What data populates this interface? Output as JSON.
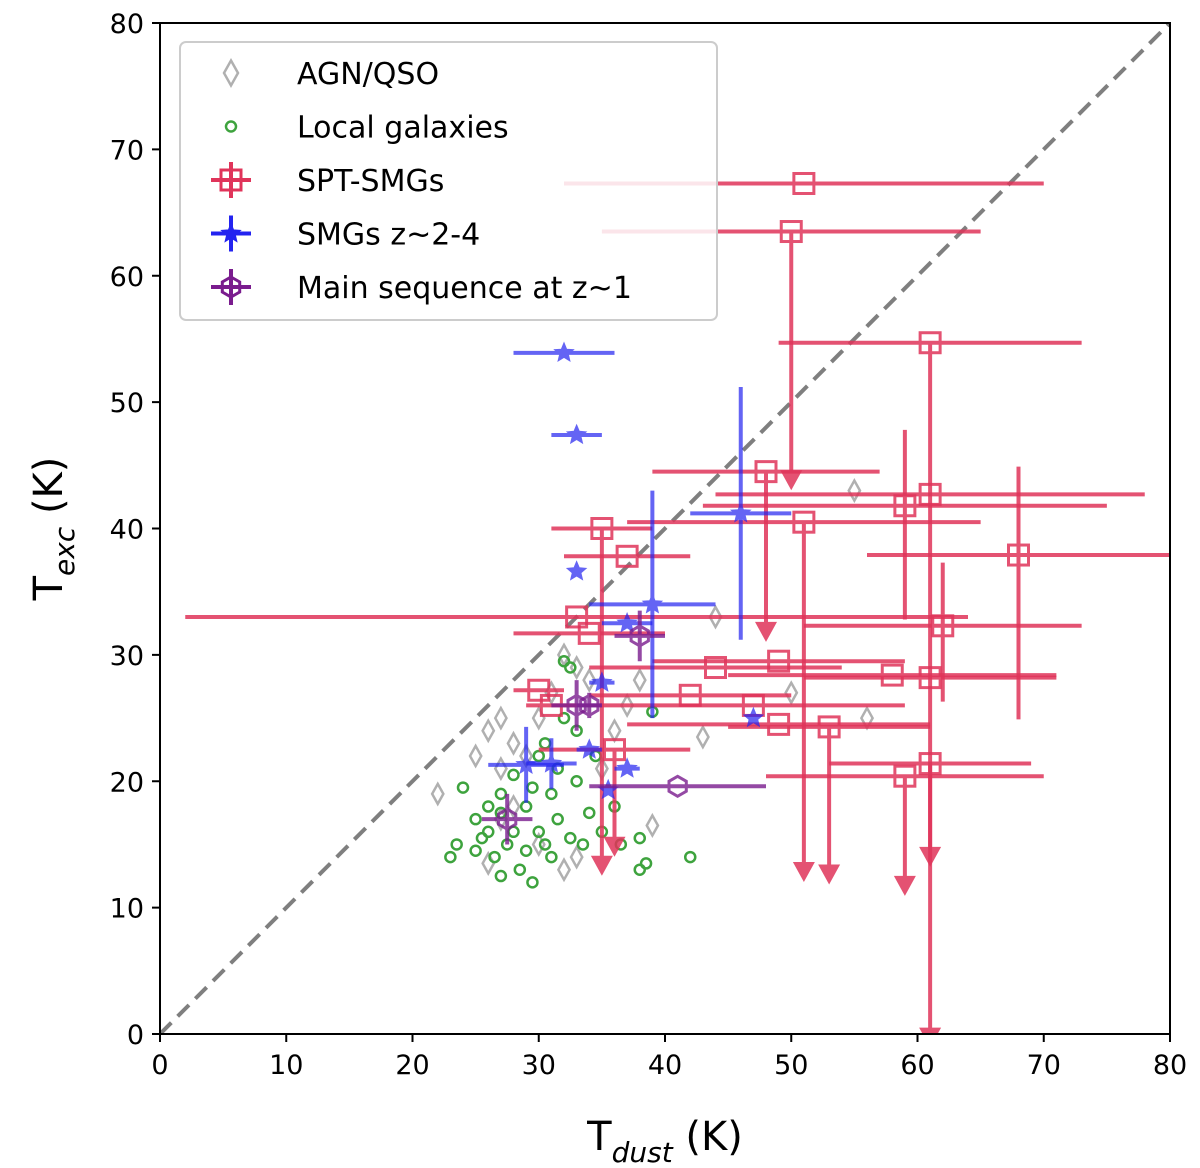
{
  "chart_data": {
    "type": "scatter",
    "title": "",
    "xlabel": {
      "main": "T",
      "sub": "dust",
      "unit": " (K)"
    },
    "ylabel": {
      "main": "T",
      "sub": "exc",
      "unit": " (K)"
    },
    "xlim": [
      0,
      80
    ],
    "ylim": [
      0,
      80
    ],
    "xticks": [
      "0",
      "10",
      "20",
      "30",
      "40",
      "50",
      "60",
      "70",
      "80"
    ],
    "yticks": [
      "0",
      "10",
      "20",
      "30",
      "40",
      "50",
      "60",
      "70",
      "80"
    ],
    "reference_line": {
      "label": "1:1",
      "style": "dashed",
      "color": "#7f7f7f"
    },
    "legend_position": "upper-left",
    "series": [
      {
        "name": "AGN/QSO",
        "label": "AGN/QSO",
        "marker": "diamond",
        "color": "#b0b0b0",
        "points": [
          [
            22,
            19
          ],
          [
            25,
            22
          ],
          [
            26,
            24
          ],
          [
            27,
            25
          ],
          [
            27,
            21
          ],
          [
            28,
            23
          ],
          [
            29,
            22
          ],
          [
            30,
            25
          ],
          [
            31,
            27
          ],
          [
            32,
            30
          ],
          [
            33,
            29
          ],
          [
            34,
            28
          ],
          [
            35,
            21
          ],
          [
            36,
            24
          ],
          [
            37,
            26
          ],
          [
            38,
            28
          ],
          [
            39,
            16.5
          ],
          [
            44,
            33
          ],
          [
            43,
            23.5
          ],
          [
            50,
            27
          ],
          [
            55,
            43
          ],
          [
            56,
            25
          ],
          [
            26,
            13.5
          ],
          [
            32,
            13
          ],
          [
            33,
            14
          ],
          [
            30,
            15
          ],
          [
            28,
            18
          ],
          [
            27,
            17
          ]
        ]
      },
      {
        "name": "Local galaxies",
        "label": "Local galaxies",
        "marker": "circle",
        "color": "#3ea33e",
        "points": [
          [
            23,
            14
          ],
          [
            23.5,
            15
          ],
          [
            24,
            19.5
          ],
          [
            25,
            17
          ],
          [
            25.5,
            15.5
          ],
          [
            26,
            18
          ],
          [
            26,
            16
          ],
          [
            26.5,
            14
          ],
          [
            27,
            19
          ],
          [
            27,
            17.5
          ],
          [
            27.5,
            15
          ],
          [
            28,
            16
          ],
          [
            28.5,
            13
          ],
          [
            29,
            18
          ],
          [
            29,
            14.5
          ],
          [
            29.5,
            12
          ],
          [
            30,
            16
          ],
          [
            30,
            22
          ],
          [
            30.5,
            23
          ],
          [
            31,
            14
          ],
          [
            31.5,
            17
          ],
          [
            31.5,
            21
          ],
          [
            32,
            25
          ],
          [
            32.5,
            15.5
          ],
          [
            32,
            29.5
          ],
          [
            32.5,
            29
          ],
          [
            33,
            24
          ],
          [
            33,
            20
          ],
          [
            34,
            17.5
          ],
          [
            34.5,
            22
          ],
          [
            35,
            16
          ],
          [
            36,
            18
          ],
          [
            36.5,
            15
          ],
          [
            38,
            15.5
          ],
          [
            38,
            13
          ],
          [
            38.5,
            13.5
          ],
          [
            39,
            25.5
          ],
          [
            42,
            14
          ],
          [
            25,
            14.5
          ],
          [
            27,
            12.5
          ],
          [
            28,
            20.5
          ],
          [
            31,
            19
          ],
          [
            33.5,
            15
          ],
          [
            29.5,
            19.5
          ],
          [
            30.5,
            15
          ]
        ]
      },
      {
        "name": "SPT-SMGs",
        "label": "SPT-SMGs",
        "marker": "square",
        "color": "#e0345a",
        "points": [
          {
            "x": 51,
            "y": 67.3,
            "xerr": [
              19,
              19
            ],
            "yerr": [
              0,
              0
            ],
            "upper": false
          },
          {
            "x": 50,
            "y": 63.5,
            "xerr": [
              15,
              15
            ],
            "yerr": [
              0,
              20
            ],
            "upper": true
          },
          {
            "x": 61,
            "y": 54.7,
            "xerr": [
              12,
              12
            ],
            "yerr": [
              0,
              41
            ],
            "upper": true
          },
          {
            "x": 48,
            "y": 44.5,
            "xerr": [
              9,
              9
            ],
            "yerr": [
              0,
              13
            ],
            "upper": true
          },
          {
            "x": 61,
            "y": 42.7,
            "xerr": [
              17,
              17
            ],
            "yerr": [
              0,
              0
            ],
            "upper": false
          },
          {
            "x": 59,
            "y": 41.8,
            "xerr": [
              16,
              16
            ],
            "yerr": [
              6,
              9
            ],
            "upper": false
          },
          {
            "x": 51,
            "y": 40.5,
            "xerr": [
              14,
              14
            ],
            "yerr": [
              0,
              28
            ],
            "upper": true
          },
          {
            "x": 35,
            "y": 40.0,
            "xerr": [
              4,
              4
            ],
            "yerr": [
              0,
              27
            ],
            "upper": true
          },
          {
            "x": 37,
            "y": 37.8,
            "xerr": [
              5,
              5
            ],
            "yerr": [
              0,
              0
            ],
            "upper": false
          },
          {
            "x": 68,
            "y": 37.9,
            "xerr": [
              12,
              12
            ],
            "yerr": [
              7,
              13
            ],
            "upper": false
          },
          {
            "x": 33,
            "y": 33.0,
            "xerr": [
              31,
              31
            ],
            "yerr": [
              0,
              0
            ],
            "upper": false
          },
          {
            "x": 62,
            "y": 32.3,
            "xerr": [
              11,
              11
            ],
            "yerr": [
              5,
              6
            ],
            "upper": false
          },
          {
            "x": 34,
            "y": 31.7,
            "xerr": [
              6,
              6
            ],
            "yerr": [
              0,
              0
            ],
            "upper": false
          },
          {
            "x": 44,
            "y": 29.0,
            "xerr": [
              10,
              10
            ],
            "yerr": [
              0,
              0
            ],
            "upper": false
          },
          {
            "x": 49,
            "y": 29.5,
            "xerr": [
              10,
              10
            ],
            "yerr": [
              0,
              0
            ],
            "upper": false
          },
          {
            "x": 58,
            "y": 28.4,
            "xerr": [
              13,
              13
            ],
            "yerr": [
              0,
              0
            ],
            "upper": false
          },
          {
            "x": 61,
            "y": 28.2,
            "xerr": [
              10,
              10
            ],
            "yerr": [
              0,
              0
            ],
            "upper": false
          },
          {
            "x": 30,
            "y": 27.2,
            "xerr": [
              2,
              2
            ],
            "yerr": [
              0,
              0
            ],
            "upper": false
          },
          {
            "x": 42,
            "y": 26.8,
            "xerr": [
              8,
              8
            ],
            "yerr": [
              0,
              0
            ],
            "upper": false
          },
          {
            "x": 31,
            "y": 26.0,
            "xerr": [
              2,
              2
            ],
            "yerr": [
              0,
              0
            ],
            "upper": false
          },
          {
            "x": 47,
            "y": 26.0,
            "xerr": [
              12,
              12
            ],
            "yerr": [
              0,
              0
            ],
            "upper": false
          },
          {
            "x": 49,
            "y": 24.5,
            "xerr": [
              12,
              12
            ],
            "yerr": [
              0,
              0
            ],
            "upper": false
          },
          {
            "x": 53,
            "y": 24.3,
            "xerr": [
              8,
              8
            ],
            "yerr": [
              0,
              12
            ],
            "upper": true
          },
          {
            "x": 36,
            "y": 22.5,
            "xerr": [
              6,
              6
            ],
            "yerr": [
              0,
              8
            ],
            "upper": true
          },
          {
            "x": 59,
            "y": 20.4,
            "xerr": [
              11,
              11
            ],
            "yerr": [
              0,
              9
            ],
            "upper": true
          },
          {
            "x": 61,
            "y": 21.4,
            "xerr": [
              8,
              8
            ],
            "yerr": [
              0,
              22
            ],
            "upper": true
          }
        ]
      },
      {
        "name": "SMGs z~2-4",
        "label": "SMGs z~2-4",
        "marker": "star",
        "color": "#2323f0",
        "points": [
          {
            "x": 32,
            "y": 53.9,
            "xerr": [
              4,
              4
            ],
            "yerr": [
              0,
              0
            ]
          },
          {
            "x": 33,
            "y": 47.4,
            "xerr": [
              2,
              2
            ],
            "yerr": [
              0,
              0
            ]
          },
          {
            "x": 46,
            "y": 41.2,
            "xerr": [
              4,
              4
            ],
            "yerr": [
              10,
              10
            ]
          },
          {
            "x": 33,
            "y": 36.6,
            "xerr": [
              0,
              0
            ],
            "yerr": [
              0,
              0
            ]
          },
          {
            "x": 39,
            "y": 34.0,
            "xerr": [
              5,
              5
            ],
            "yerr": [
              9,
              9
            ]
          },
          {
            "x": 37,
            "y": 32.5,
            "xerr": [
              2,
              2
            ],
            "yerr": [
              0,
              0
            ]
          },
          {
            "x": 35,
            "y": 27.8,
            "xerr": [
              1,
              1
            ],
            "yerr": [
              0,
              0
            ]
          },
          {
            "x": 47,
            "y": 25.0,
            "xerr": [
              0,
              0
            ],
            "yerr": [
              0,
              0
            ]
          },
          {
            "x": 34,
            "y": 22.5,
            "xerr": [
              1,
              1
            ],
            "yerr": [
              0,
              0
            ]
          },
          {
            "x": 29,
            "y": 21.3,
            "xerr": [
              3,
              3
            ],
            "yerr": [
              3,
              3
            ]
          },
          {
            "x": 31,
            "y": 21.4,
            "xerr": [
              2,
              2
            ],
            "yerr": [
              2,
              2
            ]
          },
          {
            "x": 37,
            "y": 21.0,
            "xerr": [
              1,
              1
            ],
            "yerr": [
              0,
              0
            ]
          },
          {
            "x": 35.5,
            "y": 19.3,
            "xerr": [
              0,
              0
            ],
            "yerr": [
              0,
              0
            ]
          }
        ]
      },
      {
        "name": "Main sequence at z~1",
        "label": "Main sequence at z~1",
        "marker": "hexagon",
        "color": "#7a1c8e",
        "points": [
          {
            "x": 38,
            "y": 31.5,
            "xerr": [
              2,
              2
            ],
            "yerr": [
              2,
              2
            ]
          },
          {
            "x": 33,
            "y": 26.0,
            "xerr": [
              2,
              2
            ],
            "yerr": [
              2,
              2
            ]
          },
          {
            "x": 34,
            "y": 26.0,
            "xerr": [
              1,
              1
            ],
            "yerr": [
              1,
              1
            ]
          },
          {
            "x": 41,
            "y": 19.6,
            "xerr": [
              7,
              7
            ],
            "yerr": [
              0,
              0
            ]
          },
          {
            "x": 27.5,
            "y": 17.0,
            "xerr": [
              2,
              2
            ],
            "yerr": [
              2,
              2
            ]
          }
        ]
      }
    ]
  }
}
